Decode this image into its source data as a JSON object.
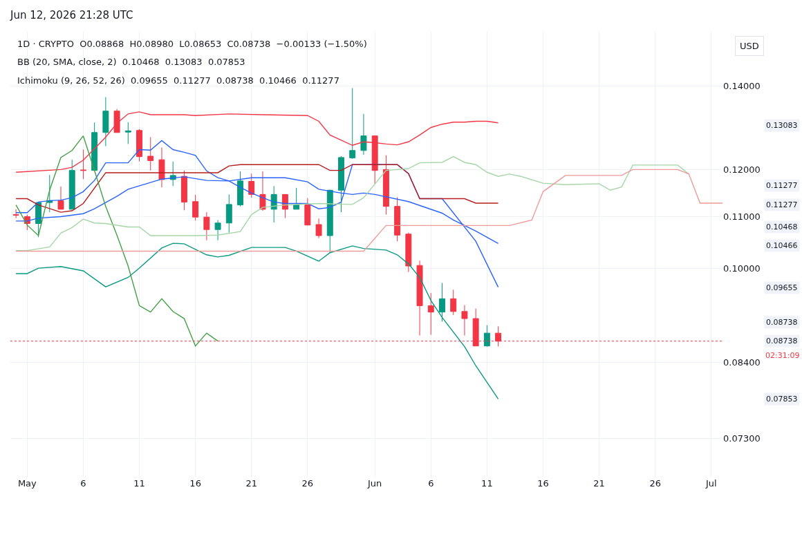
{
  "chart_data": {
    "type": "candlestick",
    "title": "Jun 12, 2026 21:28 UTC",
    "annotations": [
      "1D · CRYPTO  O0.08868  H0.08980  L0.08653  C0.08738  −0.00133 (−1.50%)",
      "BB (20, SMA, close, 2)  0.10468  0.13083  0.07853",
      "Ichimoku (9, 26, 52, 26)  0.09655  0.11277  0.08738  0.10466  0.11277",
      "USD",
      "02:31:09",
      "0.13083",
      "0.11277",
      "0.11277",
      "0.10468",
      "0.10466",
      "0.09655",
      "0.08738",
      "0.08738",
      "0.07853"
    ],
    "x": [
      "2026-04-30",
      "2026-05-01",
      "2026-05-02",
      "2026-05-03",
      "2026-05-04",
      "2026-05-05",
      "2026-05-06",
      "2026-05-07",
      "2026-05-08",
      "2026-05-09",
      "2026-05-10",
      "2026-05-11",
      "2026-05-12",
      "2026-05-13",
      "2026-05-14",
      "2026-05-15",
      "2026-05-16",
      "2026-05-17",
      "2026-05-18",
      "2026-05-19",
      "2026-05-20",
      "2026-05-21",
      "2026-05-22",
      "2026-05-23",
      "2026-05-24",
      "2026-05-25",
      "2026-05-26",
      "2026-05-27",
      "2026-05-28",
      "2026-05-29",
      "2026-05-30",
      "2026-05-31",
      "2026-06-01",
      "2026-06-02",
      "2026-06-03",
      "2026-06-04",
      "2026-06-05",
      "2026-06-06",
      "2026-06-07",
      "2026-06-08",
      "2026-06-09",
      "2026-06-10",
      "2026-06-11",
      "2026-06-12"
    ],
    "ohlc": [
      [
        0.1104,
        0.1115,
        0.1097,
        0.1103
      ],
      [
        0.11,
        0.1104,
        0.1073,
        0.1086
      ],
      [
        0.1086,
        0.1129,
        0.1059,
        0.1129
      ],
      [
        0.1129,
        0.1188,
        0.1109,
        0.1133
      ],
      [
        0.1133,
        0.1163,
        0.1115,
        0.1115
      ],
      [
        0.1115,
        0.1222,
        0.1115,
        0.1198
      ],
      [
        0.1199,
        0.1245,
        0.1179,
        0.1198
      ],
      [
        0.1198,
        0.1309,
        0.1198,
        0.1285
      ],
      [
        0.1285,
        0.1372,
        0.1253,
        0.1337
      ],
      [
        0.1337,
        0.1342,
        0.1285,
        0.1285
      ],
      [
        0.1286,
        0.131,
        0.1258,
        0.1289
      ],
      [
        0.129,
        0.1293,
        0.1218,
        0.1229
      ],
      [
        0.123,
        0.1274,
        0.1198,
        0.122
      ],
      [
        0.1222,
        0.125,
        0.1161,
        0.1178
      ],
      [
        0.1178,
        0.1218,
        0.1164,
        0.1187
      ],
      [
        0.1185,
        0.1198,
        0.1113,
        0.113
      ],
      [
        0.1131,
        0.1145,
        0.1092,
        0.1099
      ],
      [
        0.1099,
        0.1109,
        0.1053,
        0.1074
      ],
      [
        0.1074,
        0.1093,
        0.1053,
        0.1087
      ],
      [
        0.1087,
        0.1146,
        0.1068,
        0.1125
      ],
      [
        0.1124,
        0.1196,
        0.1121,
        0.1175
      ],
      [
        0.1174,
        0.1191,
        0.1139,
        0.1146
      ],
      [
        0.1146,
        0.1196,
        0.1112,
        0.1115
      ],
      [
        0.1115,
        0.1164,
        0.1088,
        0.1146
      ],
      [
        0.1146,
        0.1146,
        0.1097,
        0.1115
      ],
      [
        0.1115,
        0.116,
        0.1115,
        0.1124
      ],
      [
        0.1124,
        0.1138,
        0.1082,
        0.1083
      ],
      [
        0.1084,
        0.1096,
        0.1057,
        0.1062
      ],
      [
        0.1062,
        0.1156,
        0.1029,
        0.1155
      ],
      [
        0.1155,
        0.123,
        0.1109,
        0.1227
      ],
      [
        0.1226,
        0.1395,
        0.1224,
        0.1243
      ],
      [
        0.1243,
        0.133,
        0.1233,
        0.1277
      ],
      [
        0.1277,
        0.1277,
        0.1169,
        0.1198
      ],
      [
        0.12,
        0.1232,
        0.1104,
        0.1121
      ],
      [
        0.1121,
        0.114,
        0.1051,
        0.1063
      ],
      [
        0.1065,
        0.1068,
        0.0993,
        0.1004
      ],
      [
        0.1005,
        0.1014,
        0.0883,
        0.0933
      ],
      [
        0.0933,
        0.0955,
        0.0884,
        0.0922
      ],
      [
        0.0922,
        0.0973,
        0.0906,
        0.0945
      ],
      [
        0.0945,
        0.0961,
        0.0917,
        0.0923
      ],
      [
        0.0923,
        0.0934,
        0.0883,
        0.0911
      ],
      [
        0.0911,
        0.0928,
        0.0866,
        0.0866
      ],
      [
        0.0866,
        0.09,
        0.0865,
        0.08868
      ],
      [
        0.08868,
        0.0898,
        0.08653,
        0.08738
      ]
    ],
    "series": [
      {
        "type": "line",
        "color": "#f23645",
        "x": [
          "2026-04-30",
          "2026-05-04",
          "2026-05-05",
          "2026-05-06",
          "2026-05-07",
          "2026-05-08",
          "2026-05-09",
          "2026-05-10",
          "2026-05-11",
          "2026-05-12",
          "2026-05-15",
          "2026-05-16",
          "2026-05-19",
          "2026-05-22",
          "2026-05-26",
          "2026-05-27",
          "2026-05-28",
          "2026-05-30",
          "2026-05-31",
          "2026-06-01",
          "2026-06-02",
          "2026-06-03",
          "2026-06-04",
          "2026-06-05",
          "2026-06-06",
          "2026-06-07",
          "2026-06-08",
          "2026-06-09",
          "2026-06-10",
          "2026-06-11",
          "2026-06-12"
        ],
        "values": [
          0.1194,
          0.12,
          0.1205,
          0.1221,
          0.1247,
          0.1274,
          0.1307,
          0.133,
          0.1335,
          0.1328,
          0.1328,
          0.1326,
          0.133,
          0.1328,
          0.1326,
          0.1312,
          0.1279,
          0.1255,
          0.1263,
          0.1261,
          0.1258,
          0.1256,
          0.1263,
          0.1279,
          0.1297,
          0.1305,
          0.131,
          0.131,
          0.1312,
          0.1312,
          0.13083
        ]
      },
      {
        "type": "line",
        "color": "#2962ff",
        "x": [
          "2026-04-30",
          "2026-05-01",
          "2026-05-02",
          "2026-05-04",
          "2026-05-06",
          "2026-05-07",
          "2026-05-09",
          "2026-05-10",
          "2026-05-13",
          "2026-05-15",
          "2026-05-17",
          "2026-05-19",
          "2026-05-21",
          "2026-05-24",
          "2026-05-26",
          "2026-05-27",
          "2026-05-29",
          "2026-05-30",
          "2026-05-31",
          "2026-06-01",
          "2026-06-04",
          "2026-06-07",
          "2026-06-08",
          "2026-06-10",
          "2026-06-12"
        ],
        "values": [
          0.1091,
          0.1091,
          0.1097,
          0.11,
          0.1106,
          0.1116,
          0.1142,
          0.1157,
          0.1179,
          0.1184,
          0.1176,
          0.1175,
          0.1182,
          0.1182,
          0.1173,
          0.1157,
          0.1149,
          0.1146,
          0.1149,
          0.1146,
          0.1131,
          0.1107,
          0.1093,
          0.1071,
          0.10468
        ]
      },
      {
        "type": "line",
        "color": "#089981",
        "x": [
          "2026-04-30",
          "2026-05-01",
          "2026-05-02",
          "2026-05-04",
          "2026-05-06",
          "2026-05-08",
          "2026-05-10",
          "2026-05-11",
          "2026-05-13",
          "2026-05-14",
          "2026-05-15",
          "2026-05-17",
          "2026-05-18",
          "2026-05-19",
          "2026-05-21",
          "2026-05-24",
          "2026-05-25",
          "2026-05-27",
          "2026-05-28",
          "2026-05-30",
          "2026-05-31",
          "2026-06-02",
          "2026-06-03",
          "2026-06-04",
          "2026-06-05",
          "2026-06-06",
          "2026-06-07",
          "2026-06-09",
          "2026-06-10",
          "2026-06-12"
        ],
        "values": [
          0.099,
          0.099,
          0.1,
          0.1003,
          0.0995,
          0.0966,
          0.0983,
          0.1,
          0.1038,
          0.1047,
          0.1046,
          0.1025,
          0.1021,
          0.1024,
          0.1039,
          0.1039,
          0.1032,
          0.1013,
          0.1029,
          0.1042,
          0.1037,
          0.1034,
          0.1025,
          0.1008,
          0.0983,
          0.0942,
          0.0913,
          0.0865,
          0.0835,
          0.07853
        ]
      },
      {
        "type": "line",
        "color": "#2962ff",
        "x": [
          "2026-04-30",
          "2026-05-01",
          "2026-05-02",
          "2026-05-03",
          "2026-05-04",
          "2026-05-05",
          "2026-05-06",
          "2026-05-07",
          "2026-05-08",
          "2026-05-10",
          "2026-05-11",
          "2026-05-12",
          "2026-05-13",
          "2026-05-14",
          "2026-05-15",
          "2026-05-16",
          "2026-05-17",
          "2026-05-18",
          "2026-05-19",
          "2026-05-20",
          "2026-05-21",
          "2026-05-22",
          "2026-05-23",
          "2026-05-24",
          "2026-05-26",
          "2026-05-27",
          "2026-05-28",
          "2026-05-29",
          "2026-05-30",
          "2026-06-03",
          "2026-06-04",
          "2026-06-05",
          "2026-06-07",
          "2026-06-10",
          "2026-06-12"
        ],
        "values": [
          0.1108,
          0.1108,
          0.113,
          0.1133,
          0.1134,
          0.1139,
          0.1152,
          0.1176,
          0.1215,
          0.1215,
          0.1245,
          0.1244,
          0.1266,
          0.1245,
          0.1239,
          0.1232,
          0.1197,
          0.1182,
          0.1175,
          0.1161,
          0.1149,
          0.1139,
          0.113,
          0.1127,
          0.1127,
          0.1116,
          0.1119,
          0.113,
          0.1211,
          0.1211,
          0.1191,
          0.1137,
          0.1137,
          0.1051,
          0.09655
        ]
      },
      {
        "type": "line",
        "color": "#b71c1c",
        "x": [
          "2026-04-30",
          "2026-05-01",
          "2026-05-02",
          "2026-05-04",
          "2026-05-05",
          "2026-05-06",
          "2026-05-08",
          "2026-05-18",
          "2026-05-19",
          "2026-05-20",
          "2026-05-27",
          "2026-05-28",
          "2026-05-29",
          "2026-05-30",
          "2026-06-03",
          "2026-06-04",
          "2026-06-05",
          "2026-06-09",
          "2026-06-10",
          "2026-06-12"
        ],
        "values": [
          0.1137,
          0.1137,
          0.1124,
          0.1109,
          0.1112,
          0.1127,
          0.1193,
          0.1193,
          0.1208,
          0.1211,
          0.1211,
          0.1198,
          0.1198,
          0.1211,
          0.1211,
          0.1191,
          0.1137,
          0.1137,
          0.11277,
          0.11277
        ]
      },
      {
        "type": "line",
        "color": "#43a047",
        "x": [
          "2026-04-30",
          "2026-05-01",
          "2026-05-02",
          "2026-05-03",
          "2026-05-04",
          "2026-05-05",
          "2026-05-06",
          "2026-05-07",
          "2026-05-08",
          "2026-05-09",
          "2026-05-10",
          "2026-05-11",
          "2026-05-12",
          "2026-05-13",
          "2026-05-14",
          "2026-05-15",
          "2026-05-16",
          "2026-05-17",
          "2026-05-18"
        ],
        "values": [
          0.1124,
          0.1083,
          0.1062,
          0.1155,
          0.1227,
          0.1243,
          0.1277,
          0.1198,
          0.1121,
          0.1063,
          0.1004,
          0.0933,
          0.0922,
          0.0945,
          0.0923,
          0.0911,
          0.0866,
          0.08868,
          0.08738
        ]
      },
      {
        "type": "line",
        "color": "#a5d6a7",
        "x": [
          "2026-04-30",
          "2026-05-01",
          "2026-05-03",
          "2026-05-04",
          "2026-05-05",
          "2026-05-06",
          "2026-05-07",
          "2026-05-08",
          "2026-05-10",
          "2026-05-11",
          "2026-05-12",
          "2026-05-16",
          "2026-05-18",
          "2026-05-20",
          "2026-05-21",
          "2026-05-22",
          "2026-05-24",
          "2026-05-27",
          "2026-05-30",
          "2026-05-31",
          "2026-06-02",
          "2026-06-04",
          "2026-06-05",
          "2026-06-07",
          "2026-06-08",
          "2026-06-09",
          "2026-06-10",
          "2026-06-11",
          "2026-06-12",
          "2026-06-13",
          "2026-06-14",
          "2026-06-16",
          "2026-06-18",
          "2026-06-21",
          "2026-06-22",
          "2026-06-23",
          "2026-06-24",
          "2026-06-28",
          "2026-06-29"
        ],
        "values": [
          0.1033,
          0.1033,
          0.104,
          0.1067,
          0.1078,
          0.1095,
          0.1087,
          0.1086,
          0.1079,
          0.1079,
          0.1062,
          0.1062,
          0.1063,
          0.107,
          0.1104,
          0.1119,
          0.1124,
          0.1127,
          0.1125,
          0.1139,
          0.1198,
          0.1202,
          0.1215,
          0.1216,
          0.1229,
          0.1216,
          0.1211,
          0.1194,
          0.1185,
          0.119,
          0.1185,
          0.117,
          0.1167,
          0.1169,
          0.1155,
          0.1162,
          0.121,
          0.121,
          0.119
        ]
      },
      {
        "type": "line",
        "color": "#ef9a9a",
        "x": [
          "2026-04-30",
          "2026-05-31",
          "2026-06-02",
          "2026-06-13",
          "2026-06-15",
          "2026-06-16",
          "2026-06-18",
          "2026-06-23",
          "2026-06-24",
          "2026-06-28",
          "2026-06-29",
          "2026-06-30",
          "2026-07-02"
        ],
        "values": [
          0.1032,
          0.1032,
          0.1082,
          0.1082,
          0.1093,
          0.1152,
          0.1187,
          0.1187,
          0.12,
          0.12,
          0.119,
          0.11277,
          0.11277
        ]
      }
    ],
    "ref_lines": [
      {
        "axis": "y",
        "value": 0.08738,
        "color": "#f23645",
        "line_style": "dotted"
      }
    ],
    "log": true,
    "xlim": [
      "2026-04-29T12:00",
      "2026-07-02"
    ],
    "xticks": [
      {
        "value": "2026-05-01",
        "label": "May"
      },
      {
        "value": "2026-05-06",
        "label": "6"
      },
      {
        "value": "2026-05-11",
        "label": "11"
      },
      {
        "value": "2026-05-16",
        "label": "16"
      },
      {
        "value": "2026-05-21",
        "label": "21"
      },
      {
        "value": "2026-05-26",
        "label": "26"
      },
      {
        "value": "2026-06-01",
        "label": "Jun"
      },
      {
        "value": "2026-06-06",
        "label": "6"
      },
      {
        "value": "2026-06-11",
        "label": "11"
      },
      {
        "value": "2026-06-16",
        "label": "16"
      },
      {
        "value": "2026-06-21",
        "label": "21"
      },
      {
        "value": "2026-06-26",
        "label": "26"
      },
      {
        "value": "2026-07-01",
        "label": "Jul"
      }
    ],
    "ylim": [
      0.068,
      0.155
    ],
    "yticks": [
      {
        "value": 0.073,
        "label": "0.07300"
      },
      {
        "value": 0.084,
        "label": "0.08400"
      },
      {
        "value": 0.1,
        "label": "0.10000"
      },
      {
        "value": 0.11,
        "label": "0.11000"
      },
      {
        "value": 0.12,
        "label": "0.12000"
      },
      {
        "value": 0.14,
        "label": "0.14000"
      }
    ],
    "grid": true
  }
}
